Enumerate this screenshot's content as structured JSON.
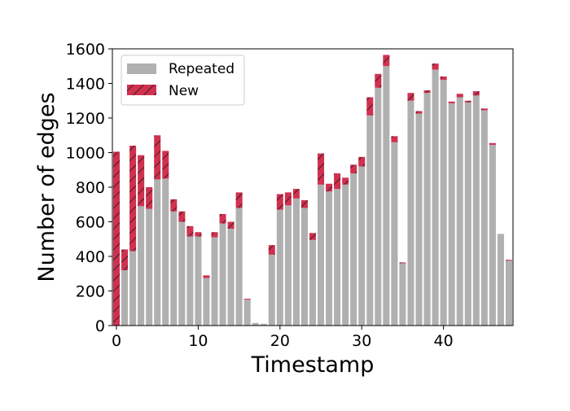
{
  "chart_data": {
    "type": "bar",
    "stacked": true,
    "xlabel": "Timestamp",
    "ylabel": "Number of edges",
    "xlim": [
      -0.5,
      48.5
    ],
    "ylim": [
      0,
      1600
    ],
    "xticks": [
      0,
      10,
      20,
      30,
      40
    ],
    "yticks": [
      0,
      200,
      400,
      600,
      800,
      1000,
      1200,
      1400,
      1600
    ],
    "grid": false,
    "legend_position": "top-left",
    "x": [
      0,
      1,
      2,
      3,
      4,
      5,
      6,
      7,
      8,
      9,
      10,
      11,
      12,
      13,
      14,
      15,
      16,
      17,
      18,
      19,
      20,
      21,
      22,
      23,
      24,
      25,
      26,
      27,
      28,
      29,
      30,
      31,
      32,
      33,
      34,
      35,
      36,
      37,
      38,
      39,
      40,
      41,
      42,
      43,
      44,
      45,
      46,
      47,
      48
    ],
    "series": [
      {
        "name": "Repeated",
        "color": "#b0b0b0",
        "pattern": "solid",
        "values": [
          0,
          320,
          430,
          690,
          675,
          845,
          850,
          660,
          600,
          515,
          515,
          275,
          510,
          590,
          560,
          680,
          150,
          15,
          10,
          410,
          670,
          695,
          735,
          680,
          495,
          815,
          775,
          790,
          815,
          880,
          920,
          1215,
          1375,
          1500,
          1060,
          360,
          1300,
          1225,
          1345,
          1480,
          1420,
          1285,
          1320,
          1290,
          1330,
          1245,
          1045,
          530,
          375
        ]
      },
      {
        "name": "New",
        "color": "#d1304f",
        "pattern": "hatch",
        "values": [
          1005,
          120,
          610,
          295,
          125,
          255,
          160,
          70,
          60,
          60,
          25,
          15,
          30,
          55,
          40,
          90,
          5,
          0,
          0,
          55,
          90,
          75,
          55,
          45,
          40,
          180,
          45,
          90,
          40,
          50,
          55,
          105,
          80,
          65,
          35,
          5,
          45,
          15,
          15,
          35,
          20,
          10,
          20,
          10,
          25,
          10,
          10,
          0,
          5
        ]
      }
    ]
  }
}
